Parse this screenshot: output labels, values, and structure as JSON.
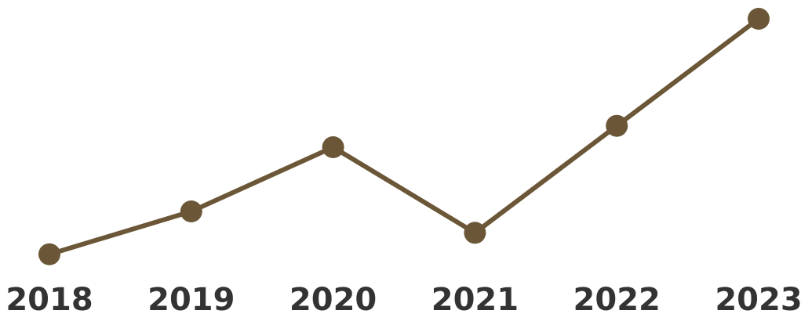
{
  "chart_data": {
    "type": "line",
    "x": [
      "2018",
      "2019",
      "2020",
      "2021",
      "2022",
      "2023"
    ],
    "series": [
      {
        "values": [
          10,
          30,
          60,
          20,
          70,
          120
        ]
      }
    ],
    "grid": false,
    "legend": "none",
    "ylim": [
      0,
      120
    ],
    "colors": {
      "line": "#6b5737",
      "marker": "#6b5737",
      "tick_label": "#333333",
      "background": "#ffffff"
    }
  }
}
